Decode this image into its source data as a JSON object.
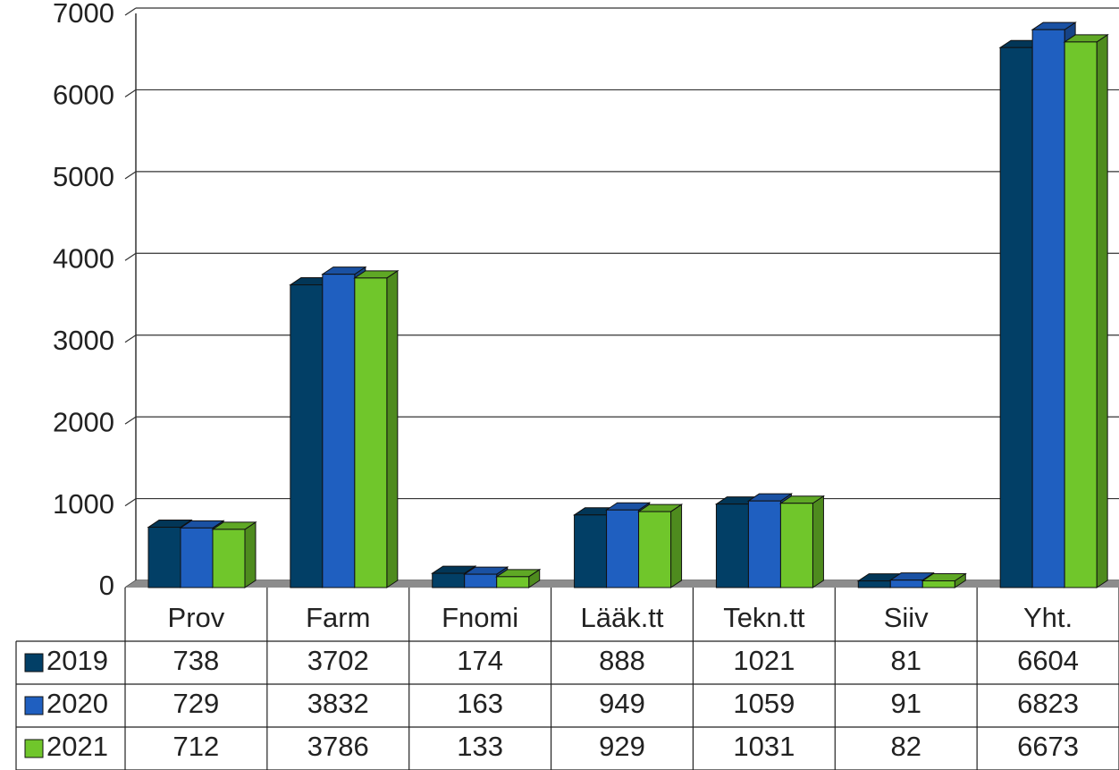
{
  "chart_data": {
    "type": "bar",
    "categories": [
      "Prov",
      "Farm",
      "Fnomi",
      "Lääk.tt",
      "Tekn.tt",
      "Siiv",
      "Yht."
    ],
    "series": [
      {
        "name": "2019",
        "color": "#023f66",
        "values": [
          738,
          3702,
          174,
          888,
          1021,
          81,
          6604
        ]
      },
      {
        "name": "2020",
        "color": "#1f5fc0",
        "values": [
          729,
          3832,
          163,
          949,
          1059,
          91,
          6823
        ]
      },
      {
        "name": "2021",
        "color": "#70c62b",
        "values": [
          712,
          3786,
          133,
          929,
          1031,
          82,
          6673
        ]
      }
    ],
    "ylim": [
      0,
      7000
    ],
    "yticks": [
      0,
      1000,
      2000,
      3000,
      4000,
      5000,
      6000,
      7000
    ],
    "grid": true
  }
}
